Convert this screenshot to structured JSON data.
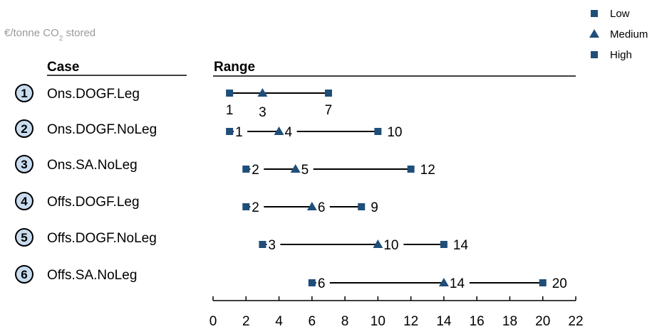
{
  "chart_data": {
    "type": "range",
    "unit_label_main": "€/tonne CO",
    "unit_label_sub": "2",
    "unit_label_tail": " stored",
    "column_headers": {
      "case": "Case",
      "range": "Range"
    },
    "xlim": [
      0,
      22
    ],
    "x_ticks": [
      0,
      2,
      4,
      6,
      8,
      10,
      12,
      14,
      16,
      18,
      20,
      22
    ],
    "x_tick_labels": [
      "0",
      "2",
      "4",
      "6",
      "8",
      "10",
      "12",
      "14",
      "16",
      "18",
      "20",
      "22"
    ],
    "legend": [
      {
        "name": "Low",
        "marker": "square"
      },
      {
        "name": "Medium",
        "marker": "triangle"
      },
      {
        "name": "High",
        "marker": "square"
      }
    ],
    "cases": [
      {
        "number": "1",
        "name": "Ons.DOGF.Leg",
        "low": 1,
        "medium": 3,
        "high": 7,
        "low_label": "1",
        "medium_label": "3",
        "high_label": "7"
      },
      {
        "number": "2",
        "name": "Ons.DOGF.NoLeg",
        "low": 1,
        "medium": 4,
        "high": 10,
        "low_label": "1",
        "medium_label": "4",
        "high_label": "10"
      },
      {
        "number": "3",
        "name": "Ons.SA.NoLeg",
        "low": 2,
        "medium": 5,
        "high": 12,
        "low_label": "2",
        "medium_label": "5",
        "high_label": "12"
      },
      {
        "number": "4",
        "name": "Offs.DOGF.Leg",
        "low": 2,
        "medium": 6,
        "high": 9,
        "low_label": "2",
        "medium_label": "6",
        "high_label": "9"
      },
      {
        "number": "5",
        "name": "Offs.DOGF.NoLeg",
        "low": 3,
        "medium": 10,
        "high": 14,
        "low_label": "3",
        "medium_label": "10",
        "high_label": "14"
      },
      {
        "number": "6",
        "name": "Offs.SA.NoLeg",
        "low": 6,
        "medium": 14,
        "high": 20,
        "low_label": "6",
        "medium_label": "14",
        "high_label": "20"
      }
    ],
    "colors": {
      "marker": "#1f4e79",
      "line": "#000000",
      "circle_fill": "#c9dcf0",
      "axis": "#000000"
    }
  }
}
